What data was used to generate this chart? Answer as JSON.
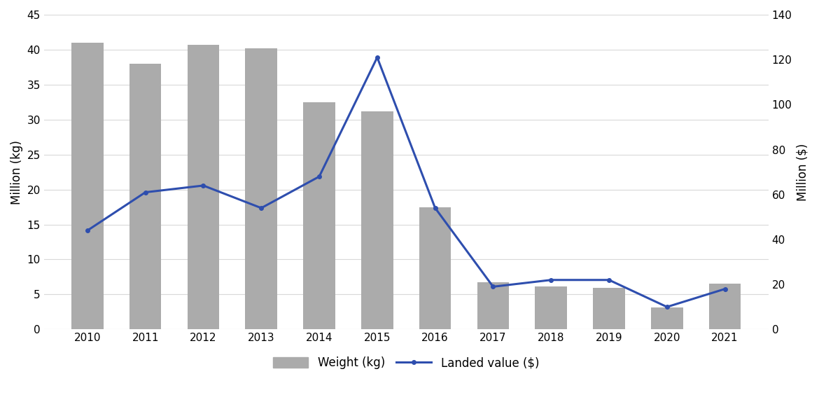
{
  "years": [
    2010,
    2011,
    2012,
    2013,
    2014,
    2015,
    2016,
    2017,
    2018,
    2019,
    2020,
    2021
  ],
  "weight_million_kg": [
    41.0,
    38.0,
    40.7,
    40.2,
    32.5,
    31.2,
    17.5,
    6.7,
    6.1,
    5.9,
    3.1,
    6.5
  ],
  "landed_value_million_usd": [
    44,
    61,
    64,
    54,
    68,
    121,
    54,
    19,
    22,
    22,
    10,
    18
  ],
  "bar_color": "#ABABAB",
  "line_color": "#2E4EAE",
  "ylabel_left": "Million (kg)",
  "ylabel_right": "Million ($)",
  "ylim_left": [
    0,
    45
  ],
  "ylim_right": [
    0,
    140
  ],
  "yticks_left": [
    0,
    5,
    10,
    15,
    20,
    25,
    30,
    35,
    40,
    45
  ],
  "yticks_right": [
    0,
    20,
    40,
    60,
    80,
    100,
    120,
    140
  ],
  "legend_bar_label": "Weight (kg)",
  "legend_line_label": "Landed value ($)",
  "background_color": "#ffffff",
  "grid_color": "#d9d9d9",
  "bar_width": 0.55,
  "line_width": 2.2,
  "marker": "o",
  "marker_size": 4,
  "title_fontsize": 13,
  "label_fontsize": 12,
  "tick_fontsize": 11,
  "legend_fontsize": 12
}
